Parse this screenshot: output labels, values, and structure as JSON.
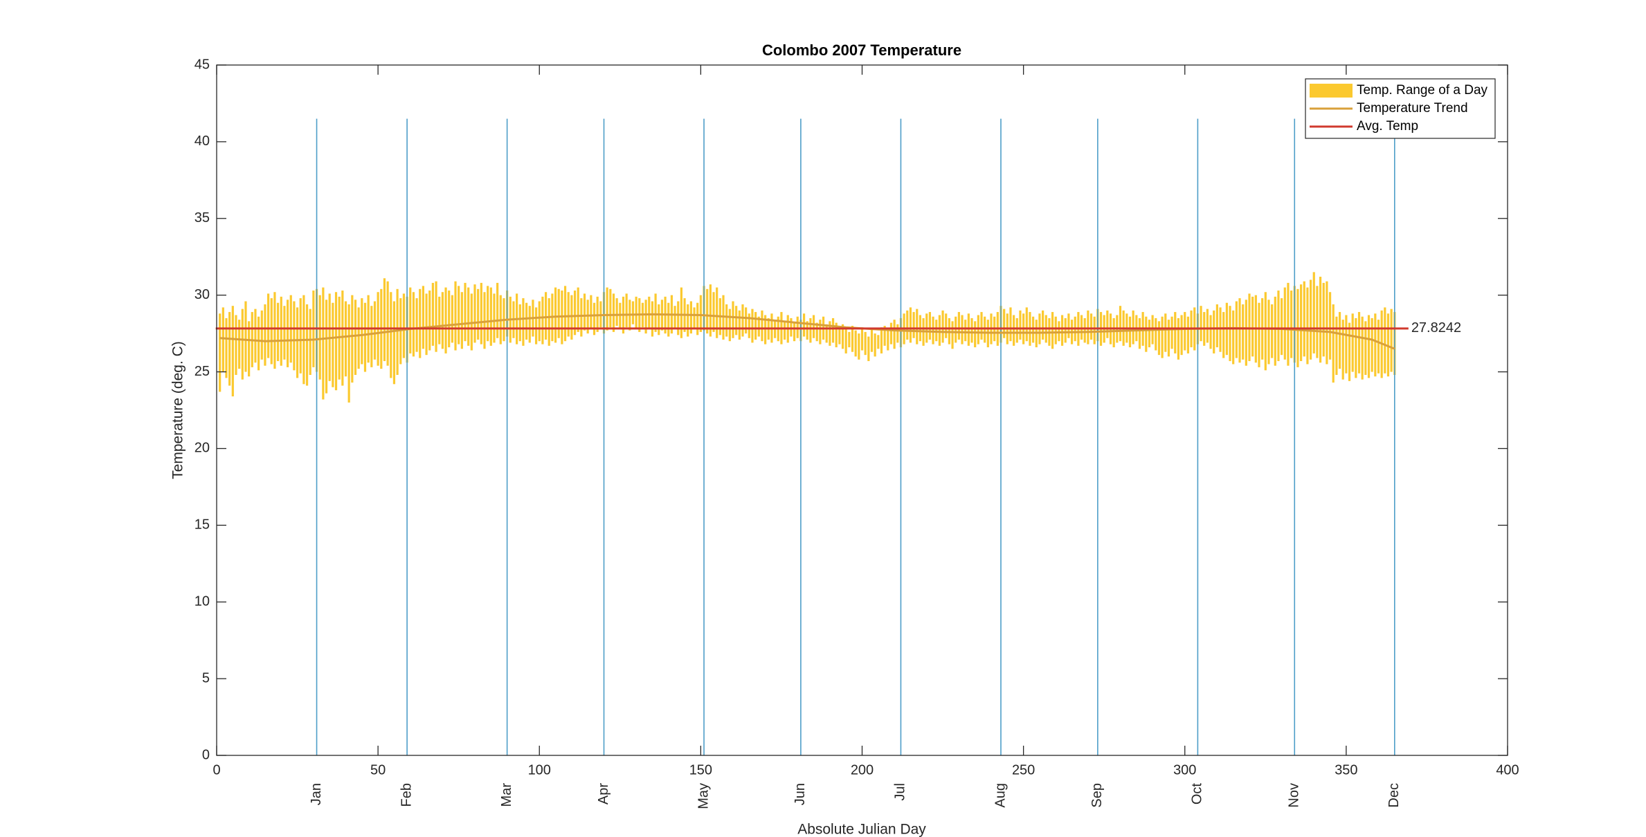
{
  "chart_data": {
    "type": "range-bar",
    "title": "Colombo 2007 Temperature",
    "x_label": "Absolute Julian Day",
    "y_label": "Temperature (deg. C)",
    "xlim": [
      0,
      400
    ],
    "xticks": [
      0,
      50,
      100,
      150,
      200,
      250,
      300,
      350,
      400
    ],
    "ylim": [
      0,
      45
    ],
    "yticks": [
      0,
      5,
      10,
      15,
      20,
      25,
      30,
      35,
      40,
      45
    ],
    "grid": false,
    "legend": "upper right",
    "series": [
      {
        "name": "Temp. Range of a Day",
        "color": "#fbc92f",
        "x": [
          1,
          2,
          3,
          4,
          5,
          6,
          7,
          8,
          9,
          10,
          11,
          12,
          13,
          14,
          15,
          16,
          17,
          18,
          19,
          20,
          21,
          22,
          23,
          24,
          25,
          26,
          27,
          28,
          29,
          30,
          31,
          32,
          33,
          34,
          35,
          36,
          37,
          38,
          39,
          40,
          41,
          42,
          43,
          44,
          45,
          46,
          47,
          48,
          49,
          50,
          51,
          52,
          53,
          54,
          55,
          56,
          57,
          58,
          59,
          60,
          61,
          62,
          63,
          64,
          65,
          66,
          67,
          68,
          69,
          70,
          71,
          72,
          73,
          74,
          75,
          76,
          77,
          78,
          79,
          80,
          81,
          82,
          83,
          84,
          85,
          86,
          87,
          88,
          89,
          90,
          91,
          92,
          93,
          94,
          95,
          96,
          97,
          98,
          99,
          100,
          101,
          102,
          103,
          104,
          105,
          106,
          107,
          108,
          109,
          110,
          111,
          112,
          113,
          114,
          115,
          116,
          117,
          118,
          119,
          120,
          121,
          122,
          123,
          124,
          125,
          126,
          127,
          128,
          129,
          130,
          131,
          132,
          133,
          134,
          135,
          136,
          137,
          138,
          139,
          140,
          141,
          142,
          143,
          144,
          145,
          146,
          147,
          148,
          149,
          150,
          151,
          152,
          153,
          154,
          155,
          156,
          157,
          158,
          159,
          160,
          161,
          162,
          163,
          164,
          165,
          166,
          167,
          168,
          169,
          170,
          171,
          172,
          173,
          174,
          175,
          176,
          177,
          178,
          179,
          180,
          181,
          182,
          183,
          184,
          185,
          186,
          187,
          188,
          189,
          190,
          191,
          192,
          193,
          194,
          195,
          196,
          197,
          198,
          199,
          200,
          201,
          202,
          203,
          204,
          205,
          206,
          207,
          208,
          209,
          210,
          211,
          212,
          213,
          214,
          215,
          216,
          217,
          218,
          219,
          220,
          221,
          222,
          223,
          224,
          225,
          226,
          227,
          228,
          229,
          230,
          231,
          232,
          233,
          234,
          235,
          236,
          237,
          238,
          239,
          240,
          241,
          242,
          243,
          244,
          245,
          246,
          247,
          248,
          249,
          250,
          251,
          252,
          253,
          254,
          255,
          256,
          257,
          258,
          259,
          260,
          261,
          262,
          263,
          264,
          265,
          266,
          267,
          268,
          269,
          270,
          271,
          272,
          273,
          274,
          275,
          276,
          277,
          278,
          279,
          280,
          281,
          282,
          283,
          284,
          285,
          286,
          287,
          288,
          289,
          290,
          291,
          292,
          293,
          294,
          295,
          296,
          297,
          298,
          299,
          300,
          301,
          302,
          303,
          304,
          305,
          306,
          307,
          308,
          309,
          310,
          311,
          312,
          313,
          314,
          315,
          316,
          317,
          318,
          319,
          320,
          321,
          322,
          323,
          324,
          325,
          326,
          327,
          328,
          329,
          330,
          331,
          332,
          333,
          334,
          335,
          336,
          337,
          338,
          339,
          340,
          341,
          342,
          343,
          344,
          345,
          346,
          347,
          348,
          349,
          350,
          351,
          352,
          353,
          354,
          355,
          356,
          357,
          358,
          359,
          360,
          361,
          362,
          363,
          364,
          365
        ],
        "low": [
          23.7,
          25.0,
          24.6,
          24.1,
          23.4,
          24.8,
          25.2,
          24.5,
          25.0,
          24.7,
          25.3,
          25.6,
          25.1,
          25.8,
          25.4,
          25.9,
          25.5,
          25.2,
          25.7,
          25.4,
          25.8,
          25.3,
          25.6,
          25.1,
          24.6,
          24.9,
          24.2,
          24.1,
          24.8,
          25.3,
          25.0,
          24.5,
          23.2,
          23.6,
          24.4,
          24.0,
          23.8,
          24.5,
          24.1,
          24.7,
          23.0,
          24.3,
          24.8,
          25.2,
          25.5,
          25.0,
          25.6,
          25.3,
          25.8,
          25.4,
          25.2,
          25.7,
          25.4,
          24.6,
          24.2,
          24.8,
          25.5,
          25.9,
          25.6,
          26.2,
          26.0,
          26.3,
          25.9,
          26.5,
          26.1,
          26.4,
          26.7,
          26.3,
          26.8,
          26.5,
          26.2,
          26.6,
          26.9,
          26.4,
          26.8,
          26.5,
          27.0,
          26.7,
          26.4,
          26.9,
          27.1,
          26.8,
          26.5,
          27.0,
          26.7,
          26.9,
          27.2,
          26.8,
          27.0,
          27.3,
          26.9,
          27.2,
          26.8,
          27.0,
          26.7,
          27.1,
          26.9,
          27.3,
          26.8,
          27.0,
          26.8,
          27.1,
          26.7,
          27.0,
          26.9,
          27.2,
          26.8,
          27.0,
          27.3,
          27.1,
          27.4,
          27.6,
          27.3,
          27.7,
          27.5,
          27.8,
          27.4,
          27.6,
          27.9,
          27.5,
          27.7,
          27.9,
          27.6,
          28.0,
          27.8,
          27.5,
          27.9,
          27.7,
          28.1,
          27.8,
          27.6,
          27.9,
          27.5,
          27.8,
          27.3,
          27.6,
          27.4,
          27.7,
          27.5,
          27.3,
          27.5,
          27.8,
          27.4,
          27.2,
          27.6,
          27.3,
          27.5,
          27.8,
          27.4,
          27.6,
          27.7,
          27.5,
          27.3,
          27.6,
          27.2,
          27.4,
          27.1,
          27.3,
          27.0,
          27.2,
          27.4,
          27.1,
          27.3,
          27.5,
          27.2,
          26.9,
          27.1,
          27.3,
          27.0,
          26.8,
          27.1,
          26.9,
          27.2,
          27.0,
          26.8,
          27.1,
          26.9,
          27.3,
          27.0,
          27.2,
          27.0,
          27.3,
          27.1,
          26.9,
          27.2,
          27.0,
          26.8,
          27.1,
          26.9,
          26.7,
          26.9,
          26.6,
          26.8,
          26.5,
          26.2,
          26.6,
          26.3,
          26.0,
          25.8,
          26.4,
          26.1,
          25.7,
          26.3,
          26.0,
          26.5,
          26.2,
          26.7,
          26.4,
          26.8,
          26.5,
          26.9,
          26.6,
          26.8,
          27.1,
          26.9,
          27.2,
          26.8,
          27.0,
          26.7,
          26.9,
          27.1,
          26.8,
          27.0,
          26.7,
          26.9,
          27.2,
          26.8,
          26.5,
          26.9,
          27.1,
          26.8,
          27.0,
          26.7,
          26.9,
          26.6,
          26.8,
          27.1,
          26.9,
          26.6,
          26.8,
          27.0,
          26.7,
          26.9,
          27.2,
          26.8,
          27.0,
          26.7,
          26.9,
          27.1,
          26.8,
          27.0,
          26.7,
          26.9,
          26.6,
          26.8,
          27.1,
          26.9,
          26.7,
          26.5,
          26.8,
          27.0,
          26.7,
          26.9,
          27.2,
          26.8,
          27.0,
          26.7,
          27.1,
          26.9,
          26.8,
          27.1,
          26.8,
          27.0,
          26.7,
          26.9,
          27.2,
          26.8,
          26.6,
          26.9,
          27.0,
          26.7,
          26.9,
          26.6,
          26.8,
          27.0,
          26.5,
          26.7,
          26.3,
          26.6,
          26.8,
          26.4,
          26.1,
          25.9,
          26.3,
          26.0,
          26.5,
          26.2,
          25.8,
          26.1,
          26.4,
          26.2,
          26.6,
          26.4,
          26.8,
          27.0,
          26.7,
          26.9,
          26.5,
          26.2,
          26.6,
          26.3,
          25.9,
          26.1,
          25.7,
          25.5,
          25.9,
          25.6,
          25.8,
          25.4,
          25.7,
          26.0,
          25.6,
          25.3,
          25.8,
          25.1,
          25.5,
          25.9,
          25.4,
          25.7,
          26.1,
          25.8,
          25.4,
          25.9,
          25.6,
          25.3,
          25.7,
          26.0,
          25.5,
          25.8,
          26.2,
          25.9,
          25.6,
          26.0,
          25.5,
          25.8,
          24.3,
          24.8,
          25.2,
          24.5,
          24.9,
          24.4,
          25.0,
          24.6,
          24.9,
          24.5,
          24.8,
          24.6,
          25.0,
          24.7,
          24.9,
          24.6,
          24.9,
          24.7,
          25.0,
          24.8
        ],
        "high": [
          28.8,
          29.2,
          28.5,
          28.9,
          29.3,
          28.7,
          28.4,
          29.1,
          29.6,
          28.3,
          28.9,
          29.1,
          28.6,
          29.0,
          29.4,
          30.1,
          29.8,
          30.2,
          29.5,
          29.9,
          29.3,
          29.7,
          30.0,
          29.6,
          29.2,
          29.8,
          30.0,
          29.4,
          29.1,
          30.3,
          30.4,
          30.0,
          30.5,
          29.7,
          30.1,
          29.5,
          30.2,
          29.9,
          30.3,
          29.6,
          29.4,
          30.0,
          29.7,
          29.2,
          29.8,
          29.5,
          30.0,
          29.3,
          29.6,
          30.2,
          30.4,
          31.1,
          30.9,
          30.2,
          29.6,
          30.4,
          29.8,
          30.1,
          29.9,
          30.5,
          30.2,
          29.8,
          30.4,
          30.6,
          30.1,
          30.3,
          30.8,
          30.9,
          29.9,
          30.2,
          30.5,
          30.3,
          30.0,
          30.9,
          30.6,
          30.2,
          30.8,
          30.5,
          30.1,
          30.7,
          30.4,
          30.8,
          30.2,
          30.6,
          30.5,
          30.1,
          30.8,
          30.0,
          29.8,
          30.3,
          29.9,
          29.6,
          30.1,
          29.4,
          29.8,
          29.5,
          29.3,
          29.7,
          29.2,
          29.6,
          29.9,
          30.2,
          29.8,
          30.1,
          30.5,
          30.4,
          30.3,
          30.6,
          30.2,
          30.0,
          30.3,
          30.5,
          29.8,
          30.1,
          29.7,
          30.0,
          29.5,
          29.9,
          29.6,
          30.2,
          30.5,
          30.4,
          30.1,
          29.8,
          29.5,
          29.9,
          30.1,
          29.7,
          29.6,
          29.9,
          29.8,
          29.5,
          29.7,
          29.9,
          29.6,
          30.1,
          29.4,
          29.7,
          29.9,
          29.5,
          30.0,
          29.3,
          29.6,
          30.5,
          29.8,
          29.4,
          29.6,
          29.2,
          29.5,
          30.0,
          30.6,
          30.4,
          30.7,
          30.2,
          30.5,
          29.8,
          30.0,
          29.4,
          29.1,
          29.6,
          29.3,
          29.0,
          29.4,
          29.2,
          28.8,
          29.1,
          28.9,
          28.6,
          29.0,
          28.7,
          28.5,
          28.8,
          28.4,
          28.6,
          28.9,
          28.3,
          28.7,
          28.5,
          28.2,
          28.6,
          28.4,
          28.8,
          28.3,
          28.5,
          28.7,
          28.2,
          28.4,
          28.6,
          28.1,
          28.3,
          28.5,
          28.2,
          27.9,
          28.1,
          27.8,
          27.6,
          28.0,
          27.7,
          27.5,
          27.9,
          27.6,
          27.3,
          27.8,
          27.5,
          27.4,
          27.9,
          28.0,
          27.7,
          28.2,
          28.4,
          28.1,
          28.5,
          28.8,
          29.0,
          29.2,
          28.9,
          29.1,
          28.7,
          28.5,
          28.8,
          28.9,
          28.6,
          28.4,
          28.7,
          29.0,
          28.8,
          28.5,
          28.3,
          28.6,
          28.9,
          28.7,
          28.4,
          28.8,
          28.5,
          28.3,
          28.7,
          28.9,
          28.6,
          28.4,
          28.8,
          28.6,
          28.9,
          29.3,
          29.1,
          28.8,
          29.2,
          28.7,
          28.5,
          29.0,
          28.8,
          29.2,
          28.9,
          28.6,
          28.4,
          28.8,
          29.0,
          28.7,
          28.5,
          28.9,
          28.6,
          28.3,
          28.7,
          28.5,
          28.8,
          28.4,
          28.6,
          28.9,
          28.7,
          28.5,
          29.0,
          28.8,
          28.6,
          29.1,
          28.9,
          28.7,
          29.0,
          28.8,
          28.5,
          28.7,
          29.3,
          29.0,
          28.8,
          28.6,
          29.0,
          28.7,
          28.5,
          28.9,
          28.6,
          28.4,
          28.7,
          28.5,
          28.3,
          28.6,
          28.8,
          28.4,
          28.6,
          28.9,
          28.5,
          28.7,
          28.9,
          28.6,
          29.0,
          29.2,
          28.8,
          29.3,
          28.9,
          29.1,
          28.7,
          29.0,
          29.4,
          29.2,
          28.9,
          29.5,
          29.3,
          29.0,
          29.6,
          29.8,
          29.4,
          29.7,
          30.1,
          29.9,
          30.0,
          29.5,
          29.8,
          30.2,
          29.7,
          29.4,
          29.9,
          30.3,
          29.8,
          30.5,
          30.8,
          30.3,
          30.6,
          30.4,
          30.7,
          30.9,
          30.5,
          31.0,
          31.5,
          30.6,
          31.2,
          30.8,
          30.9,
          30.2,
          29.4,
          28.6,
          28.9,
          28.4,
          28.7,
          28.2,
          28.8,
          28.5,
          28.9,
          28.6,
          28.3,
          28.7,
          28.5,
          28.8,
          28.4,
          29.0,
          29.2,
          28.8,
          29.1,
          28.9
        ]
      },
      {
        "name": "Temperature Trend",
        "color": "#d9a03a",
        "x": [
          1,
          15,
          30,
          45,
          60,
          75,
          90,
          105,
          120,
          135,
          150,
          165,
          180,
          195,
          210,
          225,
          240,
          255,
          270,
          285,
          300,
          315,
          330,
          345,
          358,
          365
        ],
        "values": [
          27.2,
          27.0,
          27.1,
          27.4,
          27.8,
          28.1,
          28.4,
          28.6,
          28.7,
          28.75,
          28.7,
          28.5,
          28.2,
          27.9,
          27.7,
          27.6,
          27.55,
          27.55,
          27.6,
          27.7,
          27.8,
          27.85,
          27.8,
          27.6,
          27.1,
          26.5
        ]
      },
      {
        "name": "Avg. Temp",
        "color": "#d03a2e",
        "value": 27.8242
      }
    ],
    "month_lines": {
      "color": "#4d9dc8",
      "top": 41.5,
      "x": [
        31,
        59,
        90,
        120,
        151,
        181,
        212,
        243,
        273,
        304,
        334,
        365
      ],
      "labels": [
        "Jan",
        "Feb",
        "Mar",
        "Apr",
        "May",
        "Jun",
        "Jul",
        "Aug",
        "Sep",
        "Oct",
        "Nov",
        "Dec"
      ]
    }
  }
}
